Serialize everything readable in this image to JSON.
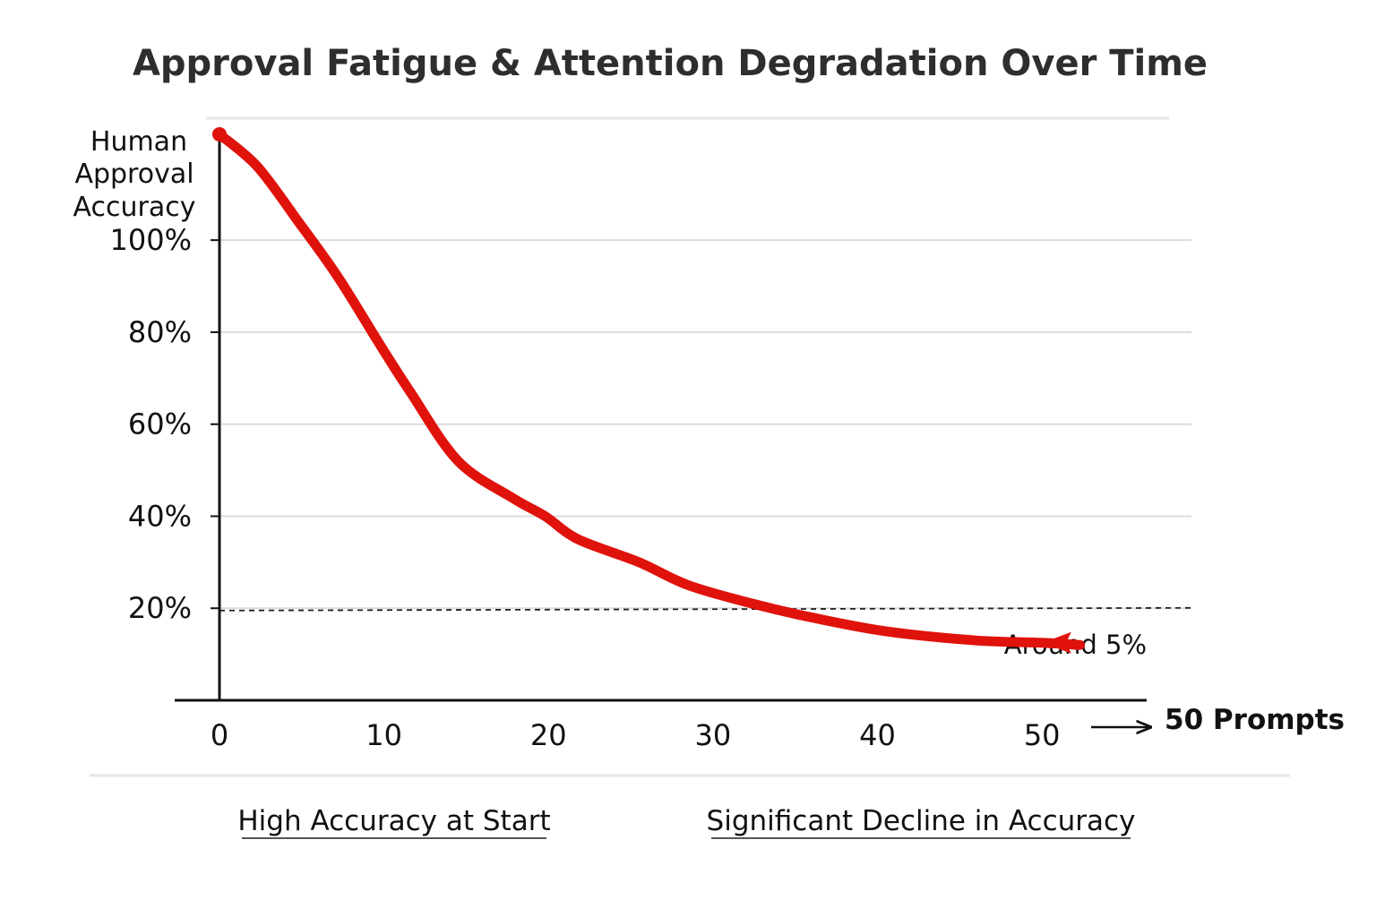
{
  "chart_data": {
    "type": "line",
    "title": "Approval Fatigue & Attention Degradation Over Time",
    "ylabel_lines": [
      "Human",
      "Approval",
      "Accuracy"
    ],
    "xlabel": "50 Prompts",
    "x_ticks": [
      "0",
      "10",
      "20",
      "30",
      "40",
      "50"
    ],
    "y_ticks": [
      "20%",
      "40%",
      "60%",
      "80%",
      "100%"
    ],
    "x": [
      0,
      2.3,
      4.8,
      7.2,
      9.8,
      11.6,
      14.5,
      17.8,
      19.8,
      21.8,
      25.5,
      28.5,
      32.4,
      36,
      40.5,
      46,
      50,
      52.3
    ],
    "values": [
      123,
      116,
      104,
      92,
      77,
      67,
      52,
      44,
      40,
      35,
      30,
      25,
      21,
      18,
      15,
      13,
      12.5,
      12
    ],
    "xlim": [
      0,
      55
    ],
    "ylim": [
      0,
      130
    ],
    "reference_line": {
      "value": 19.5,
      "label": "Around 5%"
    },
    "notes": [
      "High Accuracy at Start",
      "Significant Decline in Accuracy"
    ],
    "series_color": "#e0120c",
    "grid": true
  }
}
